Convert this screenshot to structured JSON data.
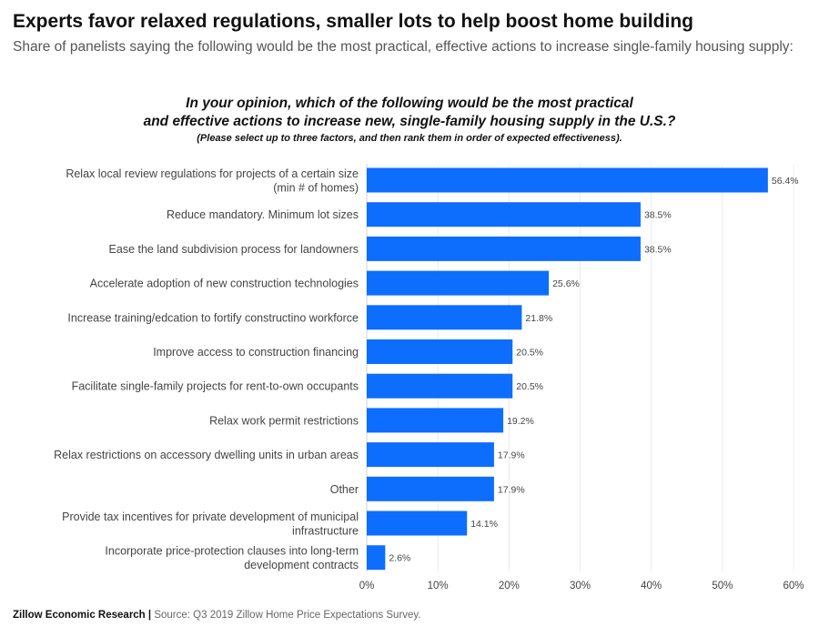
{
  "header": {
    "title": "Experts favor relaxed regulations, smaller lots to help boost home building",
    "subtitle": "Share of panelists saying the following would be the most practical, effective actions to increase single-family housing supply:"
  },
  "question": {
    "line1": "In your opinion, which of the following would be the most practical",
    "line2": "and effective actions to increase new, single-family housing supply in the U.S.?",
    "note": "(Please select up to three factors, and then rank them in order of expected effectiveness)."
  },
  "footer": {
    "brand": "Zillow Economic Research",
    "separator": "|",
    "source": "Source: Q3 2019 Zillow Home Price Expectations Survey."
  },
  "chart_data": {
    "type": "bar",
    "orientation": "horizontal",
    "categories": [
      [
        "Relax local review regulations for projects of a certain size",
        "(min # of homes)"
      ],
      [
        "Reduce mandatory. Minimum lot sizes"
      ],
      [
        "Ease the land subdivision process for landowners"
      ],
      [
        "Accelerate adoption of new construction technologies"
      ],
      [
        "Increase training/edcation to fortify constructino workforce"
      ],
      [
        "Improve access to construction financing"
      ],
      [
        "Facilitate single-family projects for rent-to-own occupants"
      ],
      [
        "Relax work permit restrictions"
      ],
      [
        "Relax restrictions on accessory dwelling units in urban areas"
      ],
      [
        "Other"
      ],
      [
        "Provide tax incentives for private development of municipal",
        "infrastructure"
      ],
      [
        "Incorporate price-protection clauses into long-term",
        "development contracts"
      ]
    ],
    "values": [
      56.4,
      38.5,
      38.5,
      25.6,
      21.8,
      20.5,
      20.5,
      19.2,
      17.9,
      17.9,
      14.1,
      2.6
    ],
    "value_labels": [
      "56.4%",
      "38.5%",
      "38.5%",
      "25.6%",
      "21.8%",
      "20.5%",
      "20.5%",
      "19.2%",
      "17.9%",
      "17.9%",
      "14.1%",
      "2.6%"
    ],
    "xlim": [
      0,
      60
    ],
    "xticks": [
      0,
      10,
      20,
      30,
      40,
      50,
      60
    ],
    "xtick_labels": [
      "0%",
      "10%",
      "20%",
      "30%",
      "40%",
      "50%",
      "60%"
    ],
    "bar_color": "#0D6EFD",
    "grid": true
  }
}
